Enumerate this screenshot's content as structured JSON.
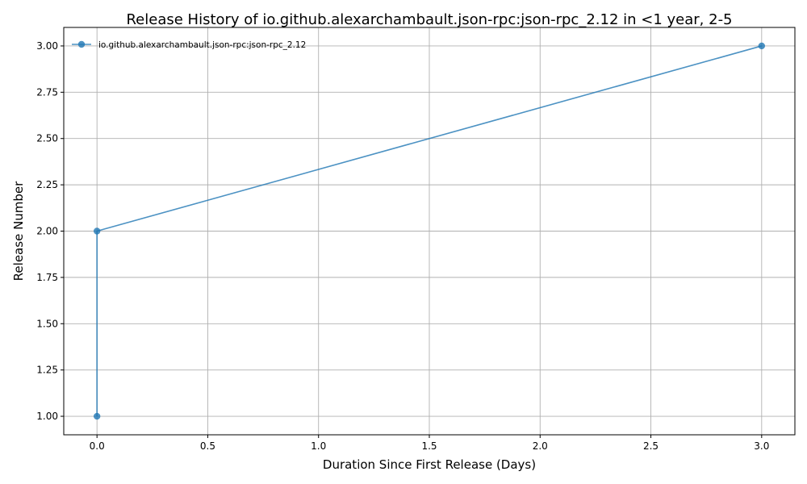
{
  "chart_data": {
    "type": "line",
    "title": "Release History of io.github.alexarchambault.json-rpc:json-rpc_2.12 in <1 year, 2-5",
    "xlabel": "Duration Since First Release (Days)",
    "ylabel": "Release Number",
    "xlim": [
      -0.15,
      3.15
    ],
    "ylim": [
      0.9,
      3.1
    ],
    "x_ticks": [
      0.0,
      0.5,
      1.0,
      1.5,
      2.0,
      2.5,
      3.0
    ],
    "x_tick_labels": [
      "0.0",
      "0.5",
      "1.0",
      "1.5",
      "2.0",
      "2.5",
      "3.0"
    ],
    "y_ticks": [
      1.0,
      1.25,
      1.5,
      1.75,
      2.0,
      2.25,
      2.5,
      2.75,
      3.0
    ],
    "y_tick_labels": [
      "1.00",
      "1.25",
      "1.50",
      "1.75",
      "2.00",
      "2.25",
      "2.50",
      "2.75",
      "3.00"
    ],
    "grid": true,
    "legend_position": "top-left",
    "series": [
      {
        "name": "io.github.alexarchambault.json-rpc:json-rpc_2.12",
        "color": "#1f77b4",
        "x": [
          0.0,
          0.0,
          3.0
        ],
        "y": [
          1,
          2,
          3
        ]
      }
    ]
  }
}
